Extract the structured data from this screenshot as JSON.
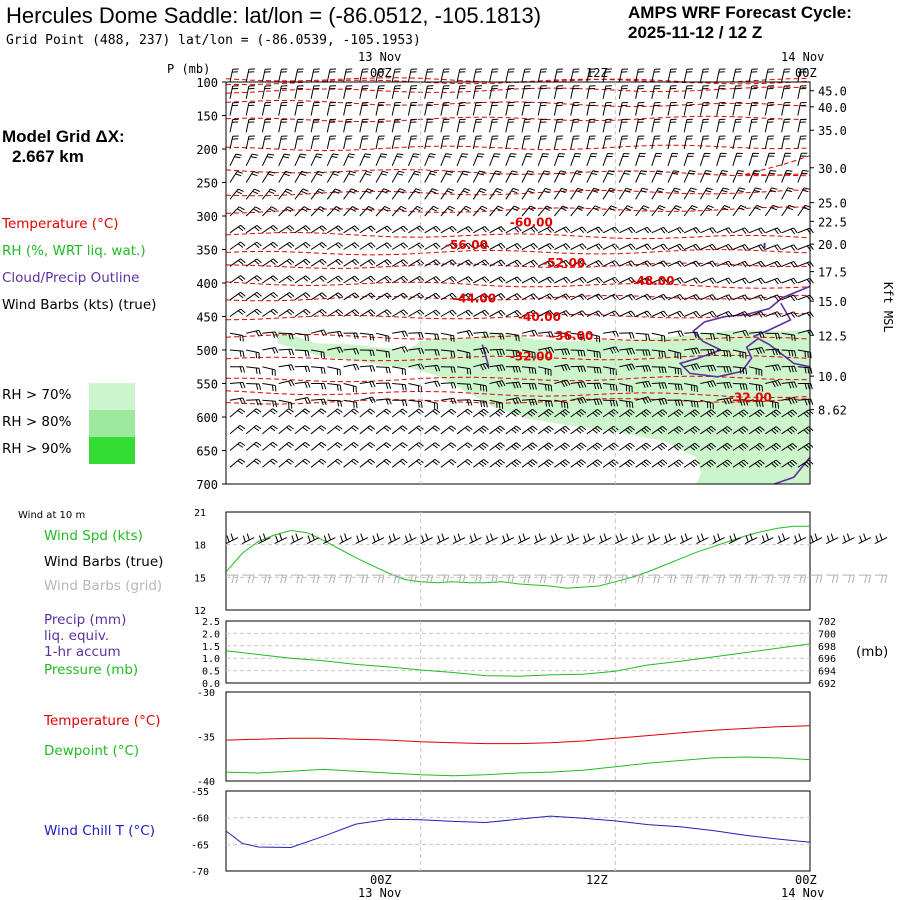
{
  "header": {
    "title": "Hercules Dome Saddle:  lat/lon = (-86.0512, -105.1813)",
    "grid_point": "Grid Point (488, 237) lat/lon = (-86.0539, -105.1953)",
    "cycle_label": "AMPS WRF Forecast Cycle:",
    "cycle_value": "2025-11-12 / 12  Z"
  },
  "model_grid": {
    "label": "Model Grid ΔX:",
    "value": "2.667 km"
  },
  "legend": {
    "temperature": "Temperature (°C)",
    "rh": "RH (%, WRT liq. wat.)",
    "cloud": "Cloud/Precip Outline",
    "wind": "Wind Barbs (kts) (true)",
    "rh70": "RH > 70%",
    "rh80": "RH > 80%",
    "rh90": "RH > 90%"
  },
  "time_axis": {
    "top_dates": [
      "13 Nov",
      "14 Nov"
    ],
    "labels": [
      "00Z",
      "12Z",
      "00Z"
    ],
    "bottom_dates": [
      "13 Nov",
      "14 Nov"
    ]
  },
  "colors": {
    "temp": "#e00000",
    "rh70": "#ccf5cc",
    "rh80": "#9ee89e",
    "rh90": "#33dd33",
    "cloud": "#6030a0",
    "wind_spd": "#22bb22",
    "barb": "#000000",
    "barb_grid": "#b0b0b0",
    "wind_chill": "#2020c0"
  },
  "chart_data": [
    {
      "type": "heatmap",
      "name": "sounding-time-section",
      "ylabel": "P (mb)",
      "ylabel_right": "Kft MSL",
      "p_range": [
        100,
        700
      ],
      "p_ticks": [
        100,
        150,
        200,
        250,
        300,
        350,
        400,
        450,
        500,
        550,
        600,
        650,
        700
      ],
      "height_ticks": [
        {
          "p": 113,
          "label": "45.0"
        },
        {
          "p": 137,
          "label": "40.0"
        },
        {
          "p": 172,
          "label": "35.0"
        },
        {
          "p": 228,
          "label": "30.0"
        },
        {
          "p": 280,
          "label": "25.0"
        },
        {
          "p": 308,
          "label": "22.5"
        },
        {
          "p": 342,
          "label": "20.0"
        },
        {
          "p": 383,
          "label": "17.5"
        },
        {
          "p": 427,
          "label": "15.0"
        },
        {
          "p": 478,
          "label": "12.5"
        },
        {
          "p": 539,
          "label": "10.0"
        },
        {
          "p": 589,
          "label": "8.62"
        }
      ],
      "temp_labels": [
        {
          "t": 17.5,
          "p": 310,
          "label": "-60.00"
        },
        {
          "t": 13.5,
          "p": 343,
          "label": "-56.00"
        },
        {
          "t": 19.5,
          "p": 370,
          "label": "-52.00"
        },
        {
          "t": 25.0,
          "p": 397,
          "label": "-48.00"
        },
        {
          "t": 14.0,
          "p": 423,
          "label": "-44.00"
        },
        {
          "t": 18.0,
          "p": 451,
          "label": "-40.00"
        },
        {
          "t": 20.0,
          "p": 479,
          "label": "-36.00"
        },
        {
          "t": 17.5,
          "p": 510,
          "label": "-32.00"
        },
        {
          "t": 31.0,
          "p": 571,
          "label": "-32.00"
        }
      ]
    },
    {
      "type": "line",
      "name": "wind-speed-10m",
      "title": "Wind at 10 m",
      "label_spd": "Wind Spd (kts)",
      "label_barb": "Wind Barbs (true)",
      "label_barb_grid": "Wind Barbs (grid)",
      "ylim": [
        12,
        21
      ],
      "ticks": [
        12,
        15,
        18,
        21
      ],
      "x": [
        0,
        1,
        2,
        3,
        4,
        5,
        6,
        7,
        8,
        9,
        10,
        11,
        12,
        13,
        14,
        15,
        16,
        17,
        18,
        19,
        20,
        21,
        22,
        23,
        24,
        25,
        26,
        27,
        28,
        29,
        30,
        31,
        32,
        33,
        34,
        35,
        36
      ],
      "series": [
        {
          "name": "Wind Spd (kts)",
          "values": [
            15.5,
            17.2,
            18.3,
            18.9,
            19.3,
            19.1,
            18.4,
            17.6,
            16.8,
            16.1,
            15.4,
            14.8,
            14.6,
            14.5,
            14.6,
            14.5,
            14.5,
            14.6,
            14.4,
            14.3,
            14.2,
            14.0,
            14.1,
            14.2,
            14.6,
            15.0,
            15.5,
            16.1,
            16.7,
            17.3,
            17.8,
            18.3,
            18.8,
            19.2,
            19.5,
            19.7,
            19.7
          ]
        }
      ]
    },
    {
      "type": "line",
      "name": "precip-pressure",
      "label_precip": "Precip (mm)",
      "label_liq": "liq. equiv.",
      "label_accum": "1-hr accum",
      "label_pressure": "Pressure (mb)",
      "right_unit": "(mb)",
      "precip_ylim": [
        0,
        2.5
      ],
      "precip_ticks": [
        "0.0",
        "0.5",
        "1.0",
        "1.5",
        "2.0",
        "2.5"
      ],
      "pressure_ylim": [
        692,
        702
      ],
      "pressure_ticks": [
        "692",
        "694",
        "696",
        "698",
        "700",
        "702"
      ],
      "x": [
        0,
        2,
        4,
        6,
        8,
        10,
        12,
        14,
        16,
        18,
        20,
        22,
        24,
        26,
        28,
        30,
        32,
        34,
        36
      ],
      "series": [
        {
          "name": "Pressure (mb)",
          "values": [
            697.2,
            696.6,
            696.0,
            695.6,
            695.0,
            694.6,
            694.1,
            693.7,
            693.2,
            693.1,
            693.3,
            693.4,
            693.9,
            694.9,
            695.5,
            696.2,
            696.9,
            697.6,
            698.3
          ]
        }
      ]
    },
    {
      "type": "line",
      "name": "temperature-dewpoint",
      "label_temp": "Temperature (°C)",
      "label_dew": "Dewpoint (°C)",
      "ylim": [
        -40,
        -30
      ],
      "ticks": [
        "-40",
        "-35",
        "-30"
      ],
      "x": [
        0,
        2,
        4,
        6,
        8,
        10,
        12,
        14,
        16,
        18,
        20,
        22,
        24,
        26,
        28,
        30,
        32,
        34,
        36
      ],
      "series": [
        {
          "name": "Temperature (°C)",
          "values": [
            -35.4,
            -35.3,
            -35.2,
            -35.2,
            -35.3,
            -35.4,
            -35.6,
            -35.7,
            -35.8,
            -35.8,
            -35.7,
            -35.5,
            -35.2,
            -34.9,
            -34.6,
            -34.3,
            -34.1,
            -33.9,
            -33.8
          ]
        },
        {
          "name": "Dewpoint (°C)",
          "values": [
            -39.0,
            -39.1,
            -38.9,
            -38.7,
            -38.9,
            -39.1,
            -39.3,
            -39.4,
            -39.3,
            -39.1,
            -39.0,
            -38.8,
            -38.4,
            -38.0,
            -37.7,
            -37.4,
            -37.3,
            -37.4,
            -37.6
          ]
        }
      ]
    },
    {
      "type": "line",
      "name": "wind-chill",
      "label": "Wind Chill T (°C)",
      "ylim": [
        -70,
        -55
      ],
      "ticks": [
        "-70",
        "-65",
        "-60",
        "-55"
      ],
      "x": [
        0,
        1,
        2,
        4,
        6,
        8,
        10,
        12,
        14,
        16,
        18,
        20,
        22,
        24,
        26,
        28,
        30,
        32,
        34,
        36
      ],
      "series": [
        {
          "name": "Wind Chill T (°C)",
          "values": [
            -62.5,
            -64.8,
            -65.5,
            -65.6,
            -63.5,
            -61.2,
            -60.3,
            -60.4,
            -60.7,
            -60.9,
            -60.3,
            -59.7,
            -60.1,
            -60.6,
            -61.3,
            -61.7,
            -62.4,
            -63.3,
            -64.0,
            -64.6
          ]
        }
      ]
    }
  ]
}
